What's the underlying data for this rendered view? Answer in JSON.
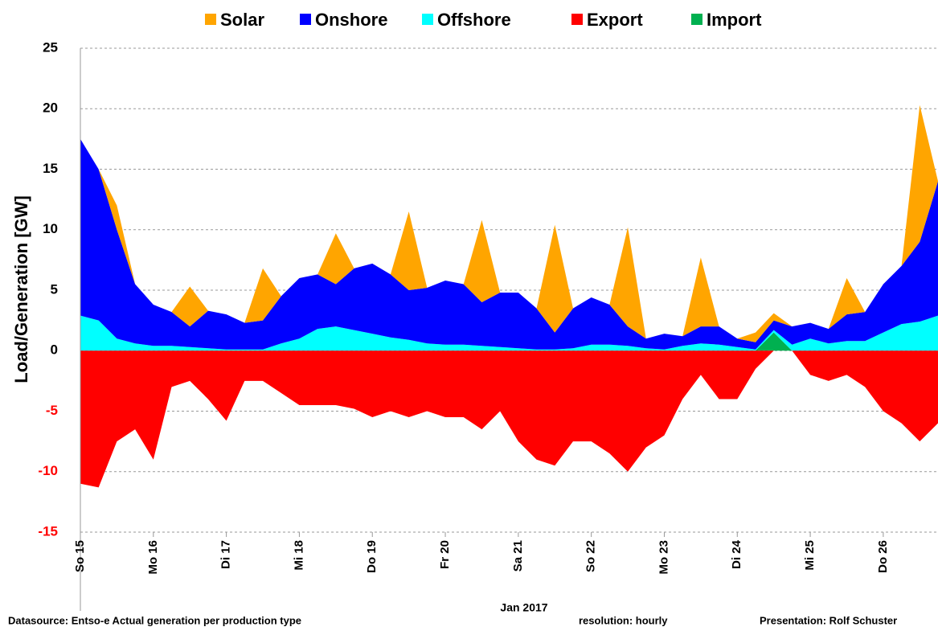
{
  "chart_data": {
    "type": "stacked_area",
    "y_label": "Load/Generation  [GW]",
    "x_label": "Jan 2017",
    "footer_left": "Datasource: Entso-e  Actual generation per production type",
    "footer_mid": "resolution: hourly",
    "footer_right": "Presentation:  Rolf Schuster",
    "x": [
      0,
      0.25,
      0.5,
      0.75,
      1,
      1.25,
      1.5,
      1.75,
      2,
      2.25,
      2.5,
      2.75,
      3,
      3.25,
      3.5,
      3.75,
      4,
      4.25,
      4.5,
      4.75,
      5,
      5.25,
      5.5,
      5.75,
      6,
      6.25,
      6.5,
      6.75,
      7,
      7.25,
      7.5,
      7.75,
      8,
      8.25,
      8.5,
      8.75,
      9,
      9.25,
      9.5,
      9.75,
      10,
      10.25,
      10.5,
      10.75,
      11,
      11.25,
      11.5,
      11.75
    ],
    "series": [
      {
        "name": "Solar",
        "color": "#ffa500",
        "values": [
          0,
          0,
          2.0,
          0,
          0,
          0,
          3.3,
          0,
          0,
          0,
          4.3,
          0,
          0,
          0,
          4.2,
          0,
          0,
          0,
          6.5,
          0,
          0,
          0,
          6.8,
          0,
          0,
          0,
          8.9,
          0,
          0,
          0,
          8.2,
          0,
          0,
          0,
          5.7,
          0,
          0,
          0.8,
          0.6,
          0,
          0,
          0,
          3.0,
          0,
          0,
          0,
          11.3,
          0
        ]
      },
      {
        "name": "Onshore",
        "color": "#0000ff",
        "values": [
          14.6,
          12.5,
          9.0,
          4.9,
          3.4,
          2.8,
          1.7,
          3.1,
          2.9,
          2.2,
          2.4,
          3.9,
          5.0,
          4.5,
          3.5,
          5.1,
          5.8,
          5.2,
          4.1,
          4.6,
          5.3,
          5.0,
          3.6,
          4.5,
          4.6,
          3.4,
          1.4,
          3.3,
          3.9,
          3.3,
          1.6,
          0.8,
          1.3,
          0.8,
          1.4,
          1.5,
          0.7,
          0.6,
          0.8,
          1.5,
          1.3,
          1.2,
          2.2,
          2.4,
          4.0,
          4.8,
          6.6,
          11.1
        ]
      },
      {
        "name": "Offshore",
        "color": "#00ffff",
        "values": [
          2.9,
          2.5,
          1.0,
          0.6,
          0.4,
          0.4,
          0.3,
          0.2,
          0.1,
          0.1,
          0.1,
          0.6,
          1.0,
          1.8,
          2.0,
          1.7,
          1.4,
          1.1,
          0.9,
          0.6,
          0.5,
          0.5,
          0.4,
          0.3,
          0.2,
          0.1,
          0.1,
          0.2,
          0.5,
          0.5,
          0.4,
          0.2,
          0.1,
          0.4,
          0.6,
          0.5,
          0.3,
          0.1,
          0.2,
          0.5,
          1.0,
          0.6,
          0.8,
          0.8,
          1.5,
          2.2,
          2.4,
          2.9
        ]
      },
      {
        "name": "Export",
        "color": "#ff0000",
        "values": [
          -11,
          -11.3,
          -7.5,
          -6.5,
          -9,
          -3,
          -2.5,
          -4,
          -5.8,
          -2.5,
          -2.5,
          -3.5,
          -4.5,
          -4.5,
          -4.5,
          -4.8,
          -5.5,
          -5,
          -5.5,
          -5,
          -5.5,
          -5.5,
          -6.5,
          -5,
          -7.5,
          -9,
          -9.5,
          -7.5,
          -7.5,
          -8.5,
          -10,
          -8,
          -7,
          -4,
          -2,
          -4,
          -4,
          -1.5,
          0,
          0,
          -2,
          -2.5,
          -2,
          -3,
          -5,
          -6,
          -7.5,
          -6
        ]
      },
      {
        "name": "Import",
        "color": "#00b050",
        "values": [
          0,
          0,
          0,
          0,
          0,
          0,
          0,
          0,
          0,
          0,
          0,
          0,
          0,
          0,
          0,
          0,
          0,
          0,
          0,
          0,
          0,
          0,
          0,
          0,
          0,
          0,
          0,
          0,
          0,
          0,
          0,
          0,
          0,
          0,
          0,
          0,
          0,
          0,
          1.5,
          0,
          0,
          0,
          0,
          0,
          0,
          0,
          0,
          0
        ]
      }
    ],
    "xlim": [
      0,
      11.75
    ],
    "xticks": [
      {
        "value": 0,
        "label": "So 15"
      },
      {
        "value": 1,
        "label": "Mo 16"
      },
      {
        "value": 2,
        "label": "Di 17"
      },
      {
        "value": 3,
        "label": "Mi 18"
      },
      {
        "value": 4,
        "label": "Do 19"
      },
      {
        "value": 5,
        "label": "Fr 20"
      },
      {
        "value": 6,
        "label": "Sa 21"
      },
      {
        "value": 7,
        "label": "So 22"
      },
      {
        "value": 8,
        "label": "Mo 23"
      },
      {
        "value": 9,
        "label": "Di 24"
      },
      {
        "value": 10,
        "label": "Mi 25"
      },
      {
        "value": 11,
        "label": "Do 26"
      }
    ],
    "ylim": [
      -15,
      25
    ],
    "yticks": [
      -15,
      -10,
      -5,
      0,
      5,
      10,
      15,
      20,
      25
    ],
    "negative_tick_color": "#ff0000",
    "grid": true,
    "legend": "top"
  }
}
